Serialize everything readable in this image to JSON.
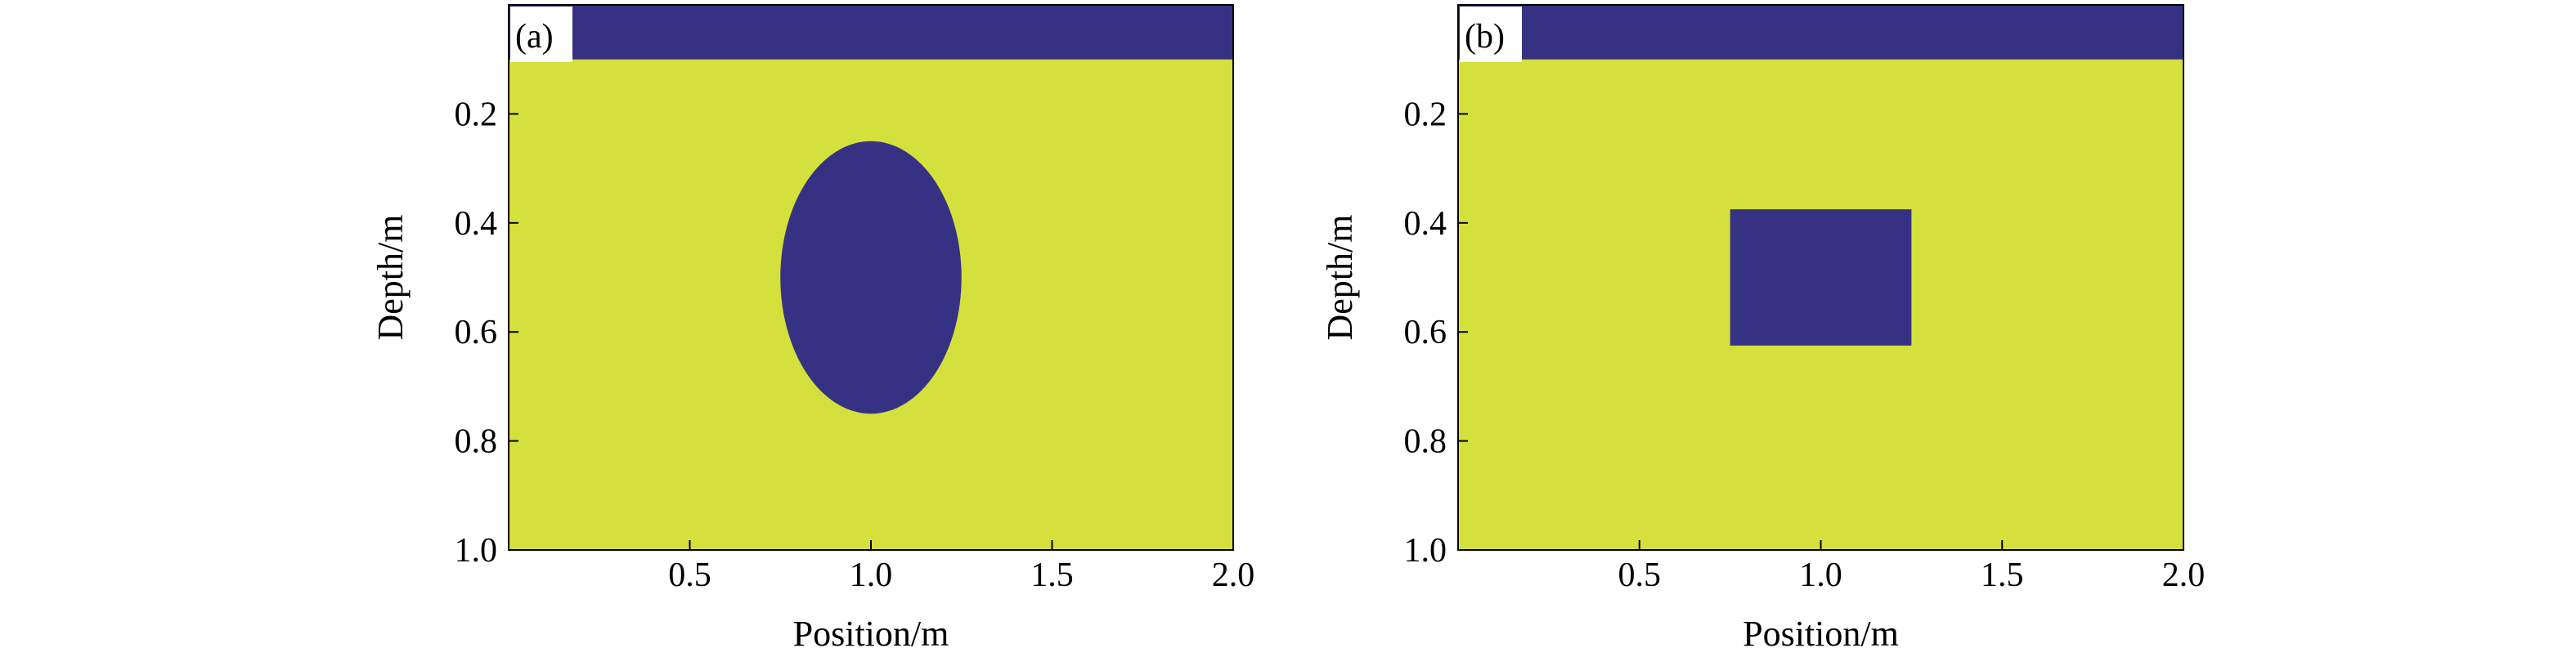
{
  "chart_data": [
    {
      "type": "heatmap",
      "panel_label": "(a)",
      "xlabel": "Position/m",
      "ylabel": "Depth/m",
      "xlim": [
        0,
        2.0
      ],
      "ylim": [
        0,
        1.0
      ],
      "y_inverted": true,
      "xticks": [
        0.5,
        1.0,
        1.5,
        2.0
      ],
      "xtick_labels": [
        "0.5",
        "1.0",
        "1.5",
        "2.0"
      ],
      "yticks": [
        0.2,
        0.4,
        0.6,
        0.8,
        1.0
      ],
      "ytick_labels": [
        "0.2",
        "0.4",
        "0.6",
        "0.8",
        "1.0"
      ],
      "background_color": "#d4e03c",
      "regions": [
        {
          "shape": "layer",
          "x_range": [
            0,
            2.0
          ],
          "depth_range": [
            0,
            0.1
          ],
          "color": "#363283"
        },
        {
          "shape": "ellipse",
          "center": [
            1.0,
            0.5
          ],
          "radii": [
            0.25,
            0.25
          ],
          "color": "#363283"
        }
      ]
    },
    {
      "type": "heatmap",
      "panel_label": "(b)",
      "xlabel": "Position/m",
      "ylabel": "Depth/m",
      "xlim": [
        0,
        2.0
      ],
      "ylim": [
        0,
        1.0
      ],
      "y_inverted": true,
      "xticks": [
        0.5,
        1.0,
        1.5,
        2.0
      ],
      "xtick_labels": [
        "0.5",
        "1.0",
        "1.5",
        "2.0"
      ],
      "yticks": [
        0.2,
        0.4,
        0.6,
        0.8,
        1.0
      ],
      "ytick_labels": [
        "0.2",
        "0.4",
        "0.6",
        "0.8",
        "1.0"
      ],
      "background_color": "#d4e03c",
      "regions": [
        {
          "shape": "layer",
          "x_range": [
            0,
            2.0
          ],
          "depth_range": [
            0,
            0.1
          ],
          "color": "#363283"
        },
        {
          "shape": "rect",
          "x_range": [
            0.75,
            1.25
          ],
          "depth_range": [
            0.375,
            0.625
          ],
          "color": "#363283"
        }
      ]
    }
  ]
}
